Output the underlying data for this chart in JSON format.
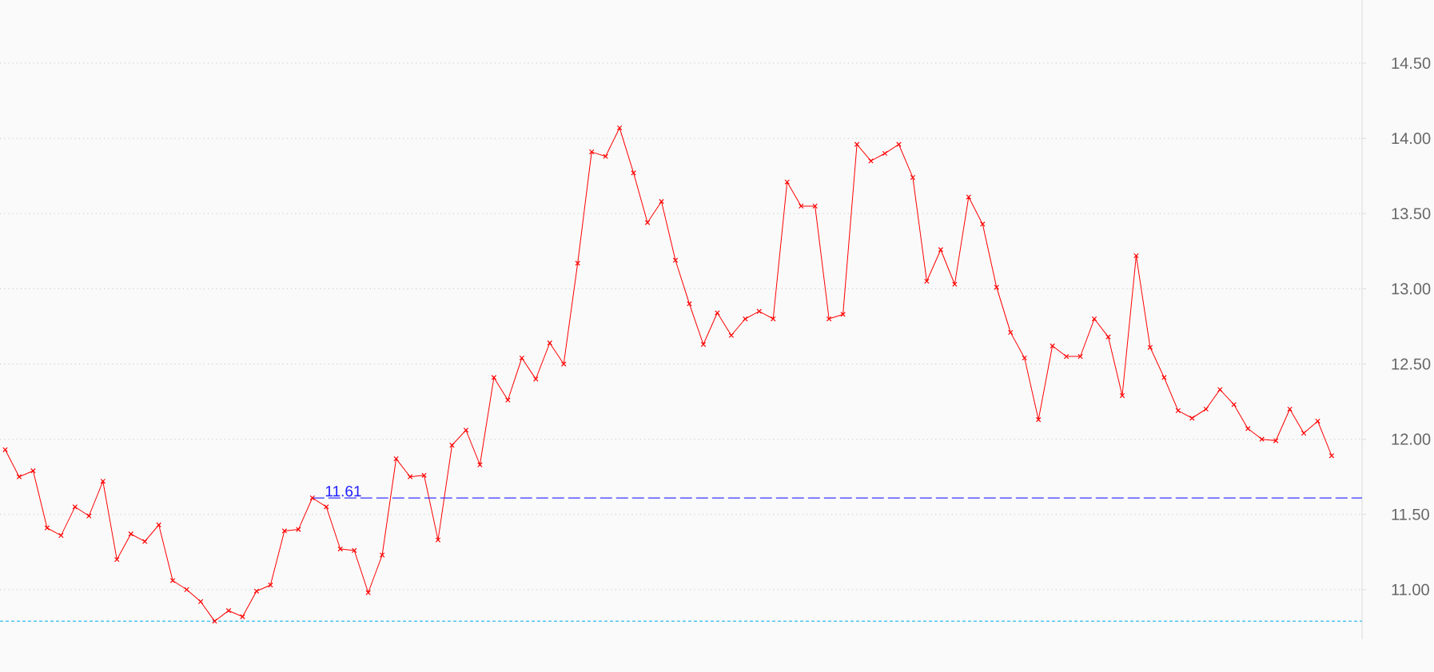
{
  "chart_data": {
    "type": "line",
    "categories": [
      null,
      null,
      null,
      null,
      null,
      null,
      null,
      null,
      null,
      null,
      null,
      null,
      null,
      null,
      null,
      null,
      null,
      null,
      null,
      null,
      null,
      null,
      null,
      null,
      null,
      null,
      null,
      null,
      null,
      null,
      null,
      null,
      null,
      null,
      null,
      null,
      null,
      null,
      null,
      null,
      null,
      null,
      null,
      null,
      null,
      null,
      null,
      null,
      null,
      null,
      null,
      null,
      null,
      null,
      null,
      null,
      null,
      null,
      null,
      null,
      null,
      null,
      null,
      null,
      null,
      null,
      null,
      null,
      null,
      null,
      null,
      null,
      null,
      null,
      null,
      null,
      null,
      null,
      null,
      null,
      null,
      null,
      null,
      null,
      null,
      null,
      null,
      null,
      null,
      null,
      null,
      null,
      null,
      null,
      null,
      null
    ],
    "series": [
      {
        "color": "#ff0000",
        "values": [
          11.93,
          11.75,
          11.79,
          11.41,
          11.36,
          11.55,
          11.49,
          11.72,
          11.2,
          11.37,
          11.32,
          11.43,
          11.06,
          11.0,
          10.92,
          10.79,
          10.86,
          10.82,
          10.99,
          11.03,
          11.39,
          11.4,
          11.61,
          11.55,
          11.27,
          11.26,
          10.98,
          11.23,
          11.87,
          11.75,
          11.76,
          11.33,
          11.96,
          12.06,
          11.83,
          12.41,
          12.26,
          12.54,
          12.4,
          12.64,
          12.5,
          13.17,
          13.91,
          13.88,
          14.07,
          13.77,
          13.44,
          13.58,
          13.19,
          12.9,
          12.63,
          12.84,
          12.69,
          12.8,
          12.85,
          12.8,
          13.71,
          13.55,
          13.55,
          12.8,
          12.83,
          13.96,
          13.85,
          13.9,
          13.96,
          13.74,
          13.05,
          13.26,
          13.03,
          13.61,
          13.43,
          13.01,
          12.71,
          12.54,
          12.13,
          12.62,
          12.55,
          12.55,
          12.8,
          12.68,
          12.29,
          13.22,
          12.61,
          12.41,
          12.19,
          12.14,
          12.2,
          12.33,
          12.23,
          12.07,
          12.0,
          11.99,
          12.2,
          12.04,
          12.12,
          11.89
        ]
      }
    ],
    "ylim": [
      10.67,
      14.92
    ],
    "yticks": [
      {
        "value": 11,
        "label": "11.00"
      },
      {
        "value": 11.5,
        "label": "11.50"
      },
      {
        "value": 12,
        "label": "12.00"
      },
      {
        "value": 12.5,
        "label": "12.50"
      },
      {
        "value": 13,
        "label": "13.00"
      },
      {
        "value": 13.5,
        "label": "13.50"
      },
      {
        "value": 14,
        "label": "14.00"
      },
      {
        "value": 14.5,
        "label": "14.50"
      }
    ],
    "grid": "y",
    "marker": "cross",
    "line_style": "solid",
    "tick_labels": "y",
    "ref_lines": [
      {
        "axis": "y",
        "value": 11.61,
        "label": "11.61",
        "color": "#2020ff",
        "line_style": "dashed"
      },
      {
        "axis": "y",
        "value": 10.79,
        "color": "#33bbee",
        "line_style": "dotted"
      }
    ]
  }
}
